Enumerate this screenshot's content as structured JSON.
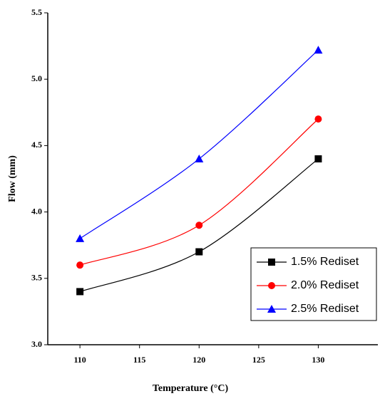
{
  "chart_data": {
    "type": "line",
    "x_label": "Temperature (°C)",
    "y_label": "Flow (mm)",
    "x": [
      110,
      120,
      130
    ],
    "series": [
      {
        "name": "1.5% Rediset",
        "color": "#000000",
        "marker": "square",
        "values": [
          3.4,
          3.7,
          4.4
        ]
      },
      {
        "name": "2.0% Rediset",
        "color": "#ff0000",
        "marker": "circle",
        "values": [
          3.6,
          3.9,
          4.7
        ]
      },
      {
        "name": "2.5% Rediset",
        "color": "#0000ff",
        "marker": "triangle",
        "values": [
          3.8,
          4.4,
          5.22
        ]
      }
    ],
    "xlim": [
      107.3,
      135
    ],
    "xticks": [
      110,
      115,
      120,
      125,
      130
    ],
    "ylim": [
      3.0,
      5.5
    ],
    "yticks": [
      {
        "value": 3.0,
        "label": "3.0"
      },
      3.5,
      {
        "value": 4.0,
        "label": "4.0"
      },
      4.5,
      {
        "value": 5.0,
        "label": "5.0"
      },
      5.5
    ],
    "legend": "lower right"
  }
}
